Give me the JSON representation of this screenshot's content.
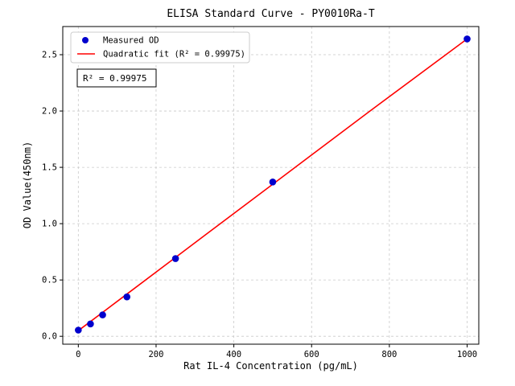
{
  "chart_data": {
    "type": "scatter",
    "title": "ELISA Standard Curve - PY0010Ra-T",
    "xlabel": "Rat IL-4 Concentration (pg/mL)",
    "ylabel": "OD Value(450nm)",
    "x_ticks": [
      0,
      200,
      400,
      600,
      800,
      1000
    ],
    "y_ticks": [
      0.0,
      0.5,
      1.0,
      1.5,
      2.0,
      2.5
    ],
    "xlim": [
      -40,
      1030
    ],
    "ylim": [
      -0.07,
      2.75
    ],
    "grid": "dashed",
    "legend_position": "upper left",
    "series": [
      {
        "name": "Measured OD",
        "kind": "scatter",
        "color": "#0000cd",
        "x": [
          0,
          31.25,
          62.5,
          125,
          250,
          500,
          1000
        ],
        "y": [
          0.055,
          0.11,
          0.19,
          0.35,
          0.69,
          1.37,
          2.64
        ]
      },
      {
        "name": "Quadratic fit (R² = 0.99975)",
        "kind": "line",
        "color": "#ff0000",
        "x": [
          0,
          125,
          250,
          500,
          750,
          1000
        ],
        "y": [
          0.05,
          0.375,
          0.7,
          1.35,
          2.0,
          2.64
        ]
      }
    ],
    "annotation": "R² = 0.99975"
  }
}
